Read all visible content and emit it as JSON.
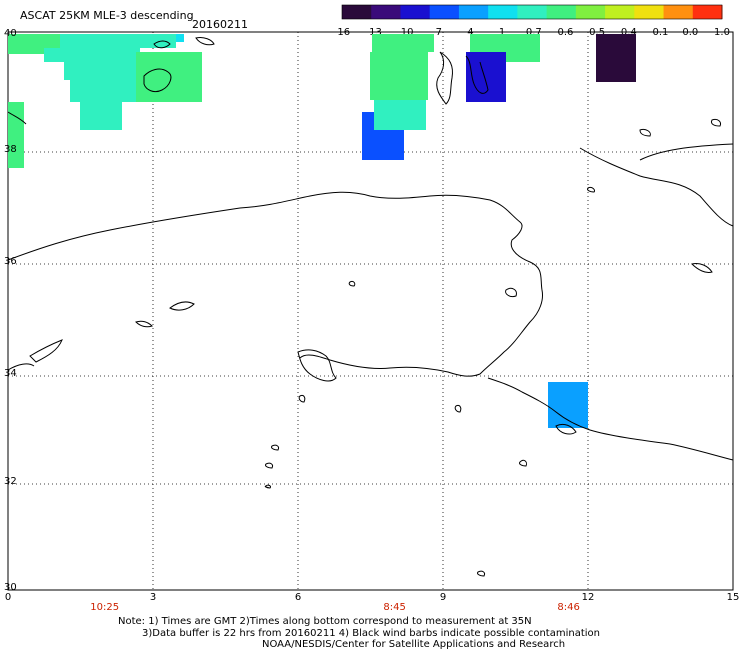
{
  "title": "ASCAT 25KM MLE-3 descending",
  "date": "20160211",
  "colorbar": {
    "labels": [
      "-16",
      "-13",
      "-10",
      "-7",
      "-4",
      "-1",
      "-0.7",
      "-0.6",
      "-0.5",
      "-0.4",
      "-0.1",
      "0.0",
      "1.0"
    ],
    "colors": [
      "#2a0a3a",
      "#3a0a7a",
      "#1a10d0",
      "#0a50ff",
      "#0aa0ff",
      "#10e0f0",
      "#30f0c0",
      "#40f080",
      "#80f040",
      "#c0f020",
      "#f0e010",
      "#ff9010",
      "#ff3010"
    ]
  },
  "map": {
    "x_ticks": [
      "0",
      "3",
      "6",
      "9",
      "12",
      "15"
    ],
    "y_ticks": [
      "40",
      "38",
      "36",
      "34",
      "32",
      "30"
    ],
    "times": [
      {
        "label": "10:25",
        "lon": 2
      },
      {
        "label": "8:45",
        "lon": 8
      },
      {
        "label": "8:46",
        "lon": 11.6
      }
    ]
  },
  "notes": [
    "Note: 1) Times are GMT 2)Times along bottom correspond to measurement at 35N",
    "3)Data buffer is 22 hrs from 20160211 4) Black wind barbs indicate possible contamination",
    "NOAA/NESDIS/Center for Satellite Applications and Research"
  ]
}
